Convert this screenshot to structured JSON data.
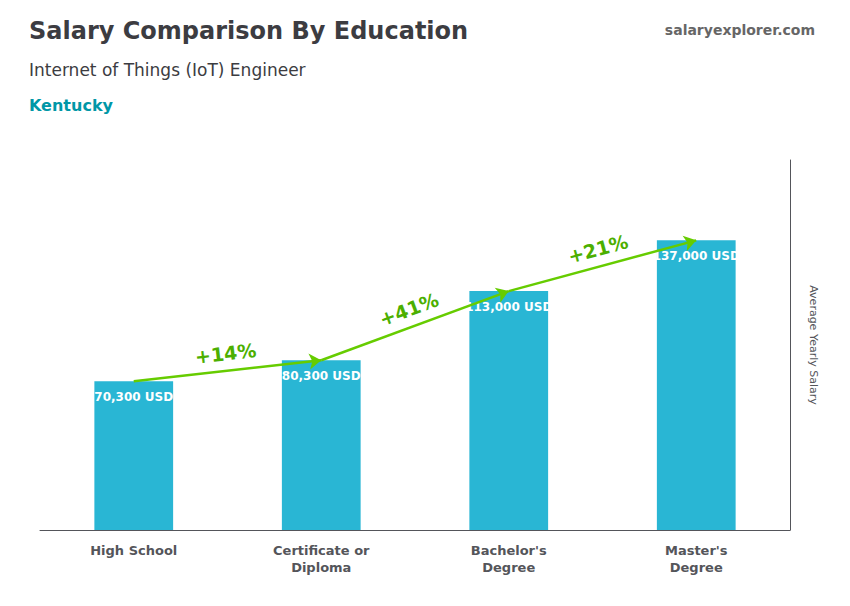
{
  "chart_data": {
    "type": "bar",
    "title": "Salary Comparison By Education",
    "subtitle": "Internet of Things (IoT) Engineer",
    "annotations": [
      "Kentucky",
      "salaryexplorer.com"
    ],
    "y_label": "Average Yearly Salary",
    "categories": [
      "High School",
      "Certificate or\nDiploma",
      "Bachelor's\nDegree",
      "Master's\nDegree"
    ],
    "values": [
      70300,
      80300,
      113000,
      137000
    ],
    "value_labels": [
      "70,300 USD",
      "80,300 USD",
      "113,000 USD",
      "137,000 USD"
    ],
    "data_labels": true,
    "arrows": [
      {
        "from": "High School",
        "to": "Certificate or\nDiploma",
        "label": "+14%"
      },
      {
        "from": "Certificate or\nDiploma",
        "to": "Bachelor's\nDegree",
        "label": "+41%"
      },
      {
        "from": "Bachelor's\nDegree",
        "to": "Master's\nDegree",
        "label": "+21%"
      }
    ],
    "color": "#29b6d4",
    "ylim": [
      0,
      175000
    ],
    "tick_labels": "x",
    "grid": false
  }
}
